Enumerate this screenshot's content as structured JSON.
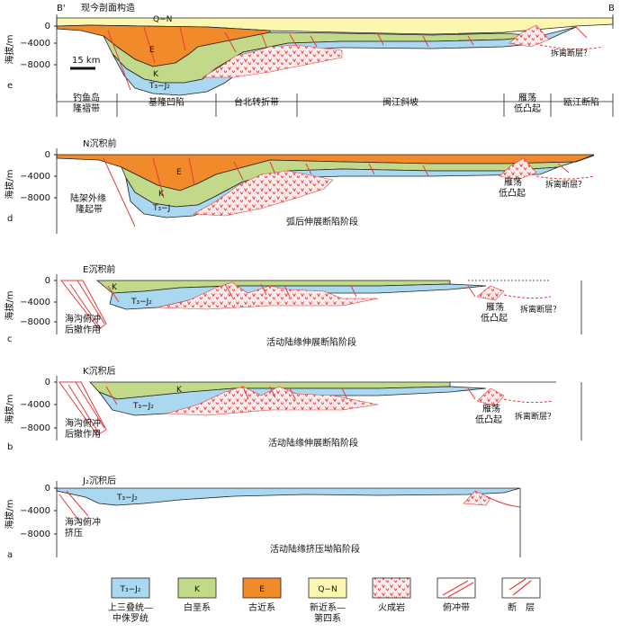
{
  "colors": {
    "tj": "#a9d8f0",
    "k": "#c2d98a",
    "e": "#f08a2a",
    "qn": "#fbf7b0",
    "igneous": "#e83a3a",
    "line": "#222222"
  },
  "panels": [
    {
      "letter": "e",
      "title": "现今剖面构造",
      "left_mark": "B'",
      "right_mark": "B",
      "ylabel": "海拔/m",
      "yticks": [
        "0",
        "−4000",
        "−8000"
      ],
      "scale_bar": "15 km",
      "labels": [
        "Q−N",
        "E",
        "K",
        "T₃−J₂",
        "拆离断层？"
      ],
      "zones": [
        "钓鱼岛\n隆褶带",
        "基隆凹陷",
        "台北转折带",
        "闽江斜坡",
        "雁荡\n低凸起",
        "瓯江断陷"
      ]
    },
    {
      "letter": "d",
      "title": "N沉积前",
      "ylabel": "海拔/m",
      "yticks": [
        "0",
        "−4000",
        "−8000"
      ],
      "labels": [
        "E",
        "K",
        "T₃−J",
        "陆架外缘\n隆起带",
        "雁荡\n低凸起",
        "拆离断层？"
      ],
      "stage": "弧后伸展断陷阶段"
    },
    {
      "letter": "c",
      "title": "E沉积前",
      "ylabel": "海拔/m",
      "yticks": [
        "0",
        "−4000",
        "−8000"
      ],
      "labels": [
        "K",
        "T₃−J₂",
        "海沟俯冲\n后撤作用",
        "雁荡\n低凸起",
        "拆离断层？"
      ],
      "stage": "活动陆缘伸展断陷阶段"
    },
    {
      "letter": "b",
      "title": "K沉积后",
      "ylabel": "海拔/m",
      "yticks": [
        "0",
        "−4000",
        "−8000"
      ],
      "labels": [
        "K",
        "T₃−J₂",
        "海沟俯冲\n后撤作用",
        "雁荡\n低凸起",
        "拆离断层？"
      ],
      "stage": "活动陆缘伸展断陷阶段"
    },
    {
      "letter": "a",
      "title": "J₂沉积后",
      "ylabel": "海拔/m",
      "yticks": [
        "0",
        "−4000",
        "−8000"
      ],
      "labels": [
        "T₃−J₂",
        "海沟俯冲\n挤压"
      ],
      "stage": "活动陆缘挤压坳陷阶段"
    }
  ],
  "legend": [
    {
      "box": "T₃−J₂",
      "label": "上三叠统—\n中侏罗统",
      "kind": "tj"
    },
    {
      "box": "K",
      "label": "白垩系",
      "kind": "k"
    },
    {
      "box": "E",
      "label": "古近系",
      "kind": "e"
    },
    {
      "box": "Q−N",
      "label": "新近系—\n第四系",
      "kind": "qn"
    },
    {
      "box": "",
      "label": "火成岩",
      "kind": "igneous"
    },
    {
      "box": "",
      "label": "俯冲带",
      "kind": "subduction"
    },
    {
      "box": "",
      "label": "断　层",
      "kind": "fault"
    }
  ]
}
